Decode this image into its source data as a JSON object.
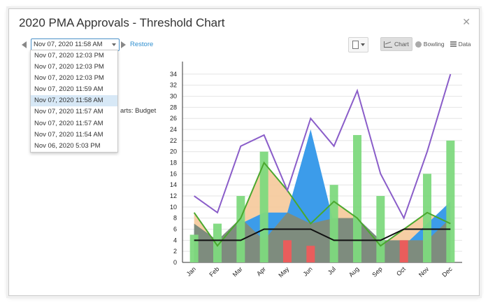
{
  "dialog": {
    "title": "2020 PMA Approvals - Threshold Chart"
  },
  "toolbar": {
    "selected_version": "Nov 07, 2020 11:58 AM",
    "restore_label": "Restore",
    "partial_text": "arts: Budget",
    "tabs": [
      {
        "label": "Chart",
        "icon": "chart-icon",
        "active": true
      },
      {
        "label": "Bowling",
        "icon": "bowling-icon",
        "active": false
      },
      {
        "label": "Data",
        "icon": "data-list-icon",
        "active": false
      }
    ]
  },
  "version_dropdown": {
    "items": [
      "Nov 07, 2020 12:03 PM",
      "Nov 07, 2020 12:03 PM",
      "Nov 07, 2020 12:03 PM",
      "Nov 07, 2020 11:59 AM",
      "Nov 07, 2020 11:58 AM",
      "Nov 07, 2020 11:57 AM",
      "Nov 07, 2020 11:57 AM",
      "Nov 07, 2020 11:54 AM",
      "Nov 06, 2020 5:03 PM"
    ],
    "selected_index": 4
  },
  "colors": {
    "bar_ok": "#7ed97e",
    "bar_bad": "#ef5b5b",
    "area_orange": "#f5c99a",
    "area_blue": "#3c9cea",
    "area_gray": "#7e8c7e",
    "line_purple": "#8a5dc9",
    "line_green": "#4aa82e",
    "line_threshold": "#111111"
  },
  "chart_data": {
    "type": "bar",
    "categories": [
      "Jan",
      "Feb",
      "Mar",
      "Apr",
      "May",
      "Jun",
      "Jul",
      "Aug",
      "Sep",
      "Oct",
      "Nov",
      "Dec"
    ],
    "ylim": [
      0,
      35
    ],
    "yticks": [
      0,
      2,
      4,
      6,
      8,
      10,
      12,
      14,
      16,
      18,
      20,
      22,
      24,
      26,
      28,
      30,
      32,
      34
    ],
    "grid": true,
    "series": [
      {
        "kind": "bar",
        "values": [
          5,
          7,
          12,
          20,
          4,
          3,
          14,
          23,
          12,
          4,
          16,
          22
        ],
        "below_threshold": [
          false,
          false,
          false,
          false,
          true,
          true,
          false,
          false,
          false,
          true,
          false,
          false
        ]
      },
      {
        "kind": "line",
        "values": [
          12,
          9,
          21,
          23,
          13,
          26,
          21,
          31,
          16,
          8,
          20,
          34
        ]
      },
      {
        "kind": "line",
        "values": [
          9,
          3,
          8,
          18,
          13,
          7,
          11,
          8,
          3,
          6,
          9,
          7
        ]
      },
      {
        "kind": "area",
        "values": [
          6,
          4,
          7,
          9,
          9,
          24,
          7,
          8,
          4,
          3,
          7,
          11
        ]
      },
      {
        "kind": "area",
        "values": [
          7,
          4,
          8,
          4,
          9,
          7,
          8,
          8,
          4,
          4,
          4,
          8
        ]
      },
      {
        "kind": "line",
        "values": [
          4,
          4,
          4,
          6,
          6,
          6,
          4,
          4,
          4,
          6,
          6,
          6
        ]
      }
    ]
  }
}
